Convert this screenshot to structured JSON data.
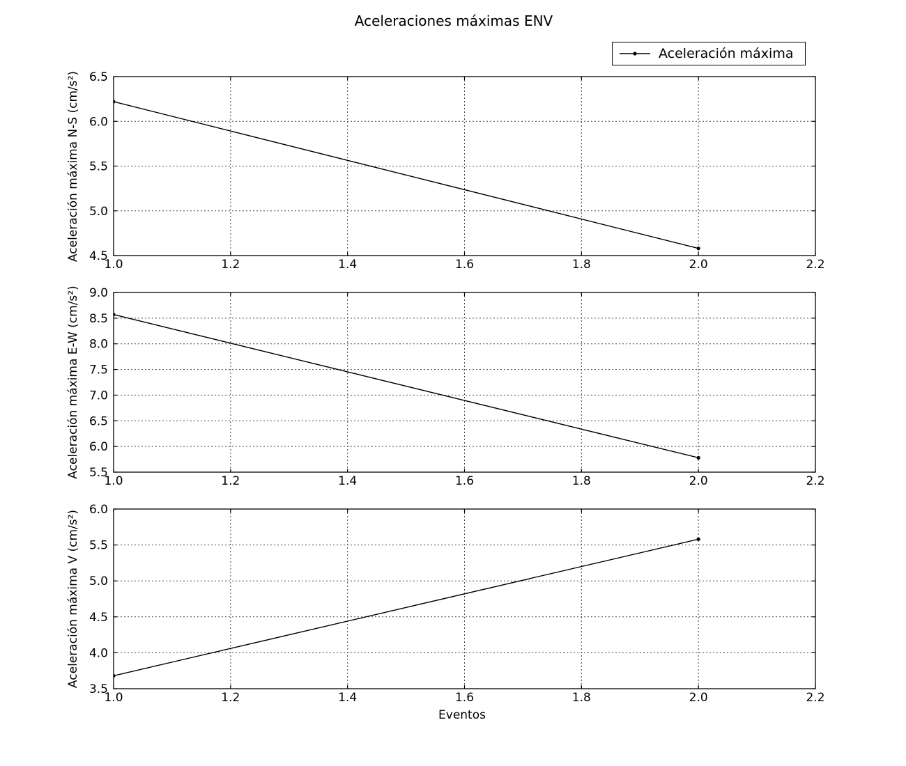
{
  "figure": {
    "title": "Aceleraciones máximas ENV",
    "xlabel": "Eventos",
    "legend": {
      "label": "Aceleración máxima",
      "position": "upper right"
    },
    "colors": {
      "line": "#000000",
      "grid": "#444444",
      "background": "#ffffff",
      "text": "#000000"
    }
  },
  "chart_data": [
    {
      "type": "line",
      "title": "",
      "xlabel": "",
      "ylabel": "Aceleración máxima N-S (cm/s²)",
      "series": [
        {
          "name": "Aceleración máxima",
          "x": [
            1.0,
            2.0
          ],
          "values": [
            6.22,
            4.58
          ]
        }
      ],
      "xlim": [
        1.0,
        2.2
      ],
      "ylim": [
        4.5,
        6.5
      ],
      "xticks": [
        1.0,
        1.2,
        1.4,
        1.6,
        1.8,
        2.0,
        2.2
      ],
      "yticks": [
        4.5,
        5.0,
        5.5,
        6.0,
        6.5
      ],
      "grid": true,
      "marker": "dot",
      "legend_visible": false
    },
    {
      "type": "line",
      "title": "",
      "xlabel": "",
      "ylabel": "Aceleración máxima E-W (cm/s²)",
      "series": [
        {
          "name": "Aceleración máxima",
          "x": [
            1.0,
            2.0
          ],
          "values": [
            8.57,
            5.78
          ]
        }
      ],
      "xlim": [
        1.0,
        2.2
      ],
      "ylim": [
        5.5,
        9.0
      ],
      "xticks": [
        1.0,
        1.2,
        1.4,
        1.6,
        1.8,
        2.0,
        2.2
      ],
      "yticks": [
        5.5,
        6.0,
        6.5,
        7.0,
        7.5,
        8.0,
        8.5,
        9.0
      ],
      "grid": true,
      "marker": "dot",
      "legend_visible": false
    },
    {
      "type": "line",
      "title": "",
      "xlabel": "Eventos",
      "ylabel": "Aceleración máxima V (cm/s²)",
      "series": [
        {
          "name": "Aceleración máxima",
          "x": [
            1.0,
            2.0
          ],
          "values": [
            3.68,
            5.58
          ]
        }
      ],
      "xlim": [
        1.0,
        2.2
      ],
      "ylim": [
        3.5,
        6.0
      ],
      "xticks": [
        1.0,
        1.2,
        1.4,
        1.6,
        1.8,
        2.0,
        2.2
      ],
      "yticks": [
        3.5,
        4.0,
        4.5,
        5.0,
        5.5,
        6.0
      ],
      "grid": true,
      "marker": "dot",
      "legend_visible": false
    }
  ]
}
